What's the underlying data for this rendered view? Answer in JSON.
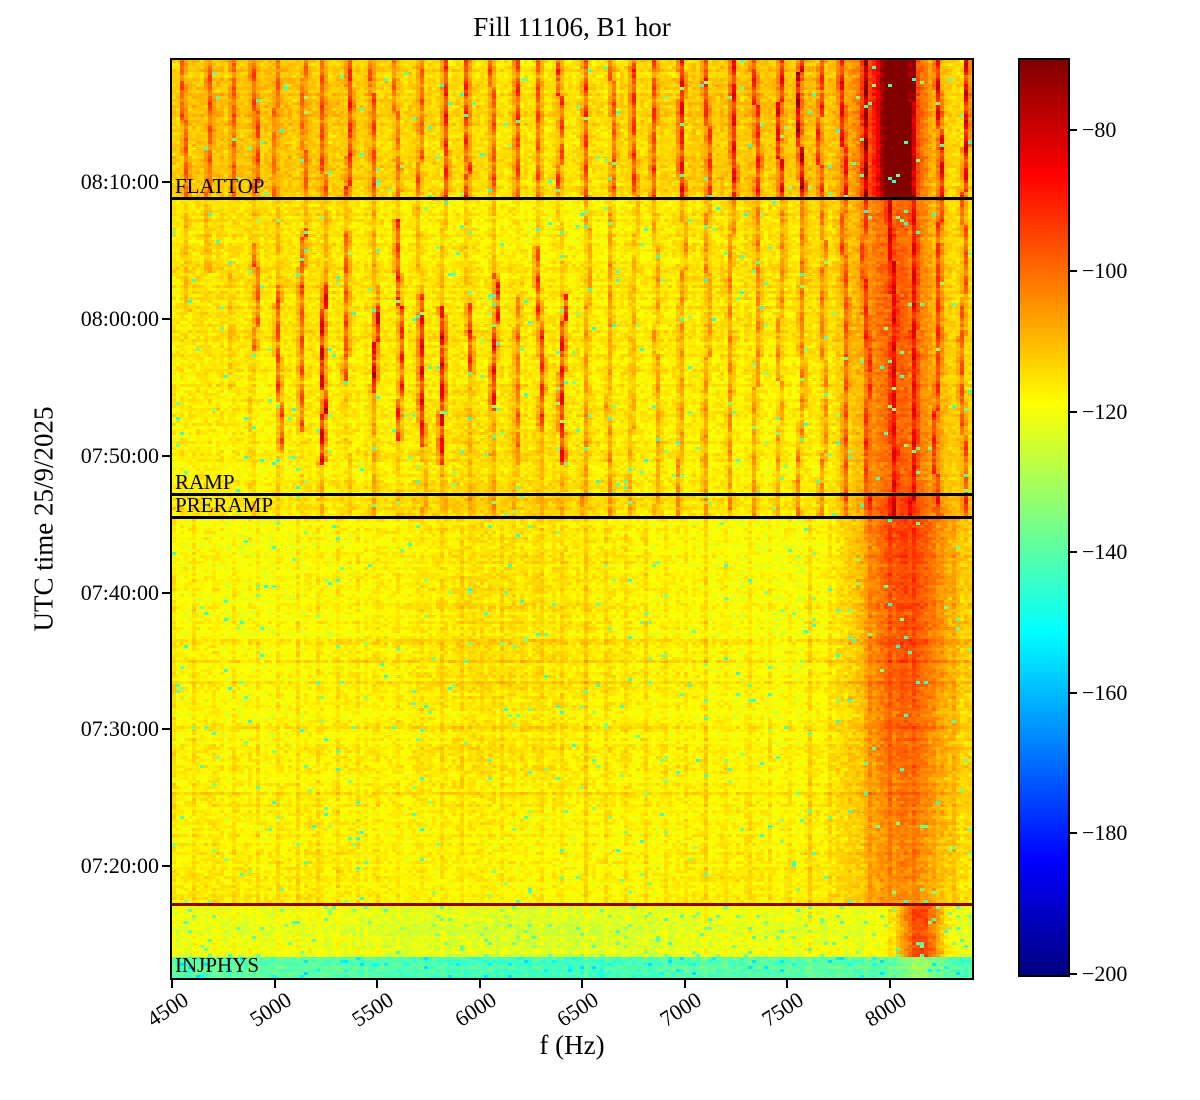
{
  "title": "Fill 11106, B1 hor",
  "chart_data": {
    "type": "heatmap",
    "title": "Fill 11106, B1 hor",
    "xlabel": "f (Hz)",
    "ylabel": "UTC time 25/9/2025",
    "date": "25/9/2025",
    "x_ticks": [
      4500,
      5000,
      5500,
      6000,
      6500,
      7000,
      7500,
      8000
    ],
    "x_range_hz": [
      4500,
      8400
    ],
    "y_ticks": [
      "08:10:00",
      "08:00:00",
      "07:50:00",
      "07:40:00",
      "07:30:00",
      "07:20:00"
    ],
    "y_range_time": [
      "07:11:50",
      "08:18:56"
    ],
    "colormap": "jet",
    "grid": false,
    "colorbar": {
      "tick_labels": [
        "−80",
        "−100",
        "−120",
        "−140",
        "−160",
        "−180",
        "−200"
      ],
      "tick_values": [
        -80,
        -100,
        -120,
        -140,
        -160,
        -180,
        -200
      ],
      "vmin": -200,
      "vmax": -70
    },
    "annotations": [
      {
        "label": "FLATTOP",
        "time": "08:08:50",
        "line": true
      },
      {
        "label": "RAMP",
        "time": "07:47:10",
        "line": true
      },
      {
        "label": "PRERAMP",
        "time": "07:45:30",
        "line": true
      },
      {
        "label": "INJPHYS",
        "time": "07:13:00",
        "line": false
      }
    ],
    "events": [
      {
        "time": "07:17:10",
        "description": "strong broadband horizontal line (injection)",
        "level_db": -72
      }
    ]
  },
  "render": {
    "seed": 12,
    "background_color": "#ffffff",
    "regions": [
      {
        "name": "flattop",
        "t0": "08:08:50",
        "t1": "08:18:56",
        "base_db": -113,
        "speckle_p": 0.01,
        "band": {
          "center_hz": 8010,
          "sigma_hz": 115,
          "amp_db": 26,
          "core_center_hz": 8030,
          "core_sigma_hz": 45,
          "core_amp_db": 42
        }
      },
      {
        "name": "ramp",
        "t0": "07:47:10",
        "t1": "08:08:50",
        "base_db": -116,
        "speckle_p": 0.012,
        "band": {
          "center_hz": 8040,
          "sigma_hz": 150,
          "amp_db": 17
        }
      },
      {
        "name": "preramp",
        "t0": "07:45:30",
        "t1": "07:47:10",
        "base_db": -114,
        "speckle_p": 0.012,
        "band": {
          "center_hz": 8050,
          "sigma_hz": 150,
          "amp_db": 20
        }
      },
      {
        "name": "steady",
        "t0": "07:17:10",
        "t1": "07:45:30",
        "base_db": -117.5,
        "speckle_p": 0.013,
        "band": {
          "center_hz": 8070,
          "sigma_hz": 160,
          "amp_db": 24,
          "amp_db_bottom": 13
        }
      },
      {
        "name": "early",
        "t0": "07:13:20",
        "t1": "07:17:10",
        "base_db": -122.5,
        "speckle_p": 0.045,
        "speckle_db": [
          -133,
          -142
        ],
        "band": {
          "center_hz": 8150,
          "sigma_hz": 80,
          "amp_db": 27
        }
      },
      {
        "name": "injphys",
        "t0": "07:11:50",
        "t1": "07:13:20",
        "base_db": -141,
        "speckle_p": 0.05,
        "speckle_db": [
          -149,
          -156
        ],
        "band": {
          "center_hz": 8150,
          "sigma_hz": 80,
          "amp_db": 9
        }
      }
    ],
    "injection_row": {
      "time": "07:17:10",
      "db": -72
    },
    "stripe_times": [
      "07:36:30",
      "07:34:55",
      "07:33:30"
    ],
    "harmonics": {
      "start_hz": 4560,
      "spacing_hz": 114,
      "flattop_amp_db": [
        14,
        32
      ],
      "ramp_left_hz": [
        4850,
        6480
      ],
      "ramp_left_amp_db": [
        14,
        30
      ],
      "ramp_left_strong_hz": [
        5050,
        6050
      ],
      "ramp_right_amp_db": [
        7,
        17
      ],
      "faint_grid_spacing_hz": 100,
      "faint_grid_amp_db": [
        1.5,
        4
      ]
    },
    "noise": {
      "cell_db": 4.2,
      "row_db": 3,
      "col_db": 2.4,
      "speckle_db": [
        -131,
        -145
      ]
    }
  }
}
